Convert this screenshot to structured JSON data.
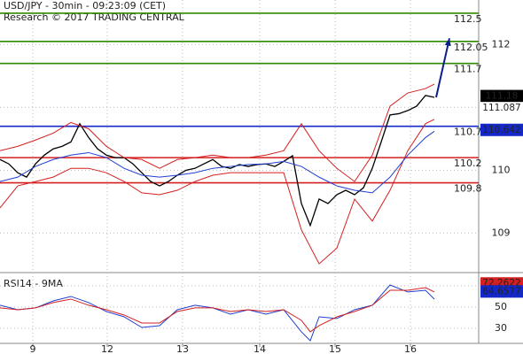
{
  "chart_data": [
    {
      "type": "line",
      "title": "USD/JPY - 30min - 09:23:09 (CET)",
      "subtitle": "Research © 2017 TRADING CENTRAL",
      "xlim": [
        0,
        108
      ],
      "ylim": [
        108.37,
        112.71
      ],
      "yticks": [
        109,
        110,
        111,
        112
      ],
      "xticks": [
        {
          "value": 7.4,
          "label": "9"
        },
        {
          "value": 24.2,
          "label": "12"
        },
        {
          "value": 41.2,
          "label": "13"
        },
        {
          "value": 58.6,
          "label": "14"
        },
        {
          "value": 75.6,
          "label": "15"
        },
        {
          "value": 92.6,
          "label": "16"
        }
      ],
      "grid": true,
      "series": [
        {
          "color": "#000000",
          "x": [
            0,
            2,
            4,
            6,
            8,
            10,
            12,
            14,
            16,
            18,
            20,
            22,
            24,
            26,
            28,
            30,
            32,
            34,
            36,
            38,
            40,
            42,
            44,
            46,
            48,
            50,
            52,
            54,
            56,
            58,
            60,
            62,
            64,
            66,
            68,
            70,
            72,
            74,
            76,
            78,
            80,
            82,
            84,
            86,
            88,
            90,
            92,
            94,
            96,
            98
          ],
          "values": [
            110.17,
            110.1,
            109.96,
            109.89,
            110.1,
            110.24,
            110.34,
            110.38,
            110.45,
            110.74,
            110.52,
            110.34,
            110.24,
            110.2,
            110.2,
            110.1,
            109.96,
            109.82,
            109.75,
            109.82,
            109.92,
            110.0,
            110.03,
            110.1,
            110.17,
            110.06,
            110.03,
            110.09,
            110.06,
            110.09,
            110.1,
            110.06,
            110.14,
            110.23,
            109.47,
            109.12,
            109.54,
            109.47,
            109.61,
            109.68,
            109.61,
            109.72,
            110.03,
            110.45,
            110.88,
            110.9,
            110.95,
            111.02,
            111.19,
            111.16
          ]
        },
        {
          "color": "#d42020",
          "x": [
            0,
            4,
            8,
            12,
            16,
            20,
            24,
            28,
            32,
            36,
            40,
            44,
            48,
            52,
            56,
            60,
            64,
            68,
            72,
            76,
            80,
            84,
            88,
            92,
            96,
            98
          ],
          "values": [
            110.31,
            110.38,
            110.48,
            110.59,
            110.76,
            110.66,
            110.38,
            110.2,
            110.17,
            110.03,
            110.17,
            110.2,
            110.24,
            110.2,
            110.2,
            110.24,
            110.31,
            110.74,
            110.31,
            110.03,
            109.82,
            110.24,
            111.02,
            111.23,
            111.3,
            111.37
          ]
        },
        {
          "color": "#d42020",
          "x": [
            0,
            4,
            8,
            12,
            16,
            20,
            24,
            28,
            32,
            36,
            40,
            44,
            48,
            52,
            56,
            60,
            64,
            68,
            72,
            76,
            80,
            84,
            88,
            92,
            96,
            98
          ],
          "values": [
            109.4,
            109.75,
            109.82,
            109.89,
            110.03,
            110.03,
            109.96,
            109.82,
            109.64,
            109.61,
            109.68,
            109.82,
            109.92,
            109.96,
            109.96,
            109.96,
            109.96,
            109.05,
            108.51,
            108.76,
            109.54,
            109.19,
            109.68,
            110.31,
            110.74,
            110.81
          ]
        },
        {
          "color": "#1f3fd0",
          "x": [
            0,
            4,
            8,
            12,
            16,
            20,
            24,
            28,
            32,
            36,
            40,
            44,
            48,
            52,
            56,
            60,
            64,
            68,
            72,
            76,
            80,
            84,
            88,
            92,
            96,
            98
          ],
          "values": [
            109.82,
            109.89,
            110.06,
            110.17,
            110.24,
            110.28,
            110.2,
            110.03,
            109.92,
            109.89,
            109.92,
            109.96,
            110.03,
            110.06,
            110.09,
            110.1,
            110.14,
            110.06,
            109.89,
            109.75,
            109.68,
            109.64,
            109.89,
            110.24,
            110.52,
            110.62
          ]
        }
      ],
      "levels": [
        {
          "value": 112.5,
          "color": "#2e8b00"
        },
        {
          "value": 112.05,
          "color": "#2e8b00"
        },
        {
          "value": 111.7,
          "color": "#2e8b00"
        },
        {
          "value": 110.7,
          "color": "#1428c8"
        },
        {
          "value": 110.2,
          "color": "#d42020"
        },
        {
          "value": 109.8,
          "color": "#d42020"
        }
      ],
      "arrow": {
        "color": "#0b1f8c",
        "x": [
          98.4,
          101.4
        ],
        "values": [
          111.16,
          112.1
        ]
      },
      "markers": [
        {
          "value": 111.18,
          "color": "#000000"
        },
        {
          "value": 111.087,
          "color": "#d42020"
        },
        {
          "value": 110.642,
          "color": "#1428c8"
        }
      ]
    },
    {
      "type": "line",
      "title": "RSI14 - 9MA",
      "xlim": [
        0,
        108
      ],
      "ylim": [
        15.8,
        80.8
      ],
      "yticks": [
        30,
        50,
        70
      ],
      "grid": true,
      "series": [
        {
          "color": "#1f3fd0",
          "x": [
            0,
            4,
            8,
            12,
            16,
            20,
            24,
            28,
            32,
            36,
            40,
            44,
            48,
            52,
            56,
            60,
            64,
            68,
            70,
            72,
            76,
            80,
            84,
            88,
            92,
            96,
            98
          ],
          "values": [
            51.7,
            47.5,
            49.2,
            55.8,
            60.0,
            54.2,
            45.8,
            40.8,
            30.8,
            32.5,
            47.5,
            51.7,
            49.2,
            43.3,
            47.5,
            43.3,
            47.5,
            26.7,
            18.3,
            40.8,
            39.2,
            47.5,
            51.7,
            70.8,
            64.2,
            65.8,
            57.5
          ]
        },
        {
          "color": "#d42020",
          "x": [
            0,
            4,
            8,
            12,
            16,
            20,
            24,
            28,
            32,
            36,
            40,
            44,
            48,
            52,
            56,
            60,
            64,
            68,
            70,
            72,
            76,
            80,
            84,
            88,
            92,
            96,
            98
          ],
          "values": [
            49.2,
            47.5,
            49.2,
            54.2,
            57.5,
            51.7,
            47.5,
            42.5,
            35.0,
            35.0,
            45.8,
            49.2,
            49.2,
            45.8,
            47.5,
            45.8,
            47.5,
            37.5,
            26.7,
            32.5,
            40.8,
            45.8,
            51.7,
            65.8,
            65.8,
            68.3,
            64.2
          ]
        }
      ],
      "markers": [
        {
          "value": 72.2622,
          "color": "#d42020"
        },
        {
          "value": 64.6577,
          "color": "#1428c8"
        }
      ]
    }
  ]
}
